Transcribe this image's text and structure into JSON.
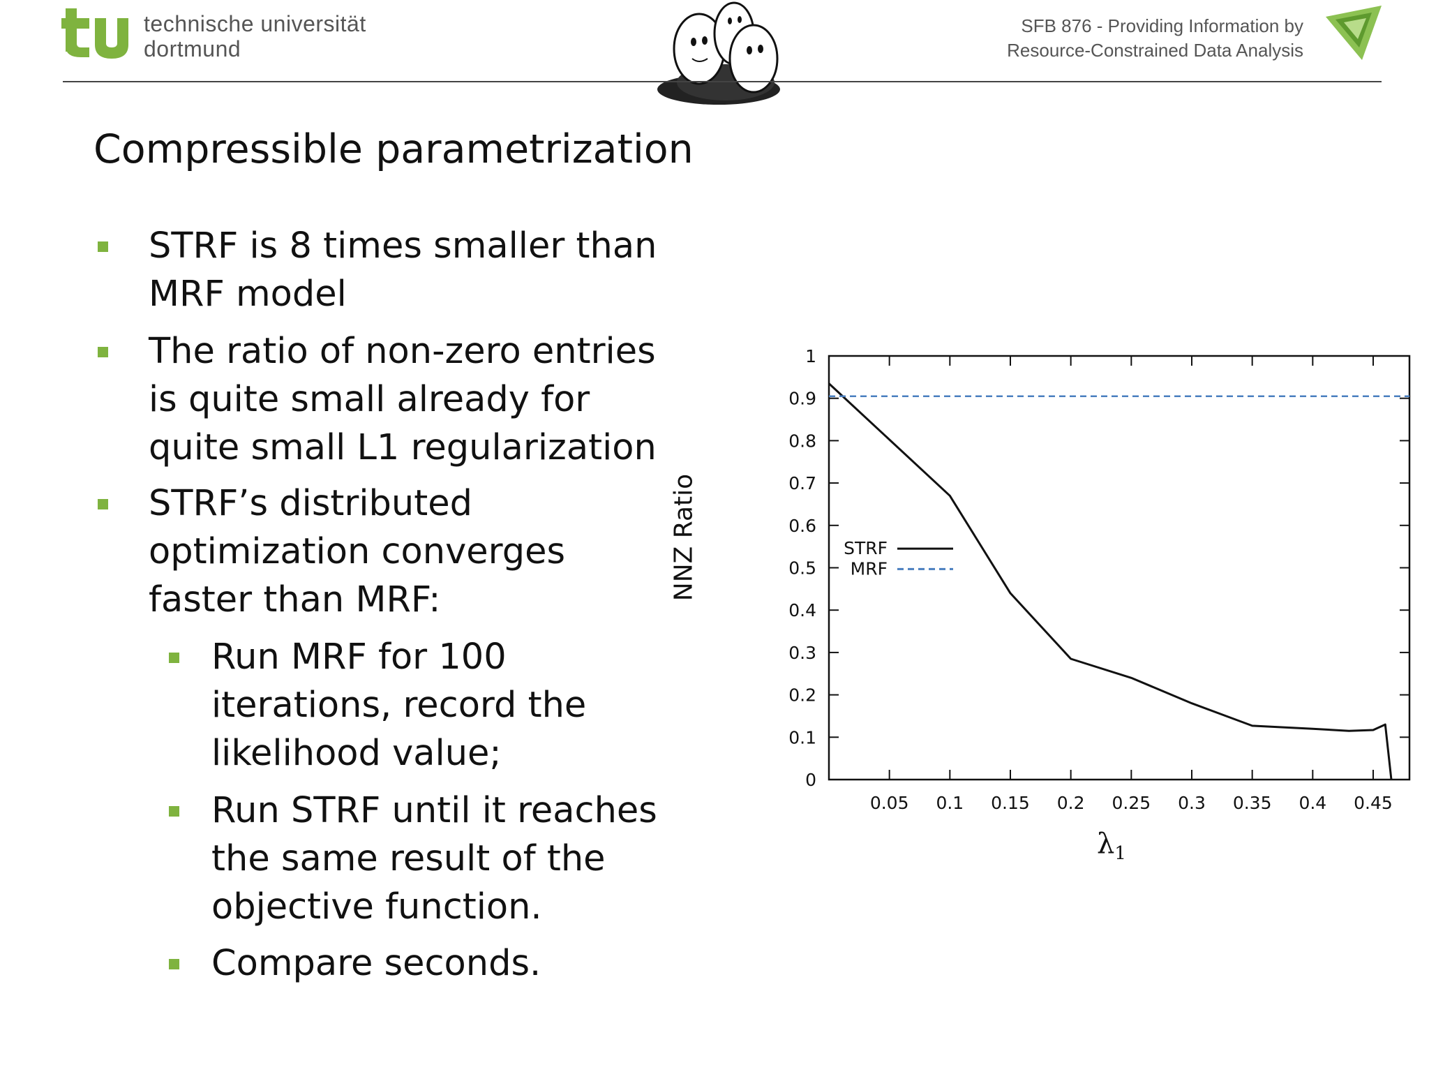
{
  "header": {
    "university_line1": "technische universität",
    "university_line2": "dortmund",
    "sfb_line1": "SFB 876  -  Providing Information by",
    "sfb_line2": "Resource-Constrained Data Analysis",
    "accent_color": "#7fb33f"
  },
  "slide": {
    "title": "Compressible parametrization",
    "bullets": [
      {
        "lines": [
          "STRF is 8 times smaller than",
          "MRF model"
        ]
      },
      {
        "lines": [
          "The ratio of non-zero entries",
          "is quite small already for",
          "quite small L1 regularization"
        ]
      },
      {
        "lines": [
          "STRF’s distributed",
          "optimization converges",
          "faster than MRF:"
        ]
      }
    ],
    "sub_bullets": [
      {
        "lines": [
          "Run MRF for 100",
          "iterations, record the",
          "likelihood value;"
        ]
      },
      {
        "lines": [
          "Run STRF until it reaches",
          "the same result of the",
          "objective function."
        ]
      },
      {
        "lines": [
          "Compare seconds."
        ]
      }
    ]
  },
  "chart_data": {
    "type": "line",
    "title": "",
    "xlabel": "λ",
    "xlabel_sub": "1",
    "ylabel": "NNZ Ratio",
    "xlim": [
      0,
      0.48
    ],
    "ylim": [
      0,
      1
    ],
    "xticks": [
      "0.05",
      "0.1",
      "0.15",
      "0.2",
      "0.25",
      "0.3",
      "0.35",
      "0.4",
      "0.45"
    ],
    "yticks": [
      "0",
      "0.1",
      "0.2",
      "0.3",
      "0.4",
      "0.5",
      "0.6",
      "0.7",
      "0.8",
      "0.9",
      "1"
    ],
    "legend_position": "left-middle",
    "grid": false,
    "series": [
      {
        "name": "STRF",
        "color": "#111111",
        "style": "solid",
        "x": [
          0,
          0.1,
          0.15,
          0.2,
          0.25,
          0.3,
          0.35,
          0.4,
          0.43,
          0.45,
          0.46,
          0.465
        ],
        "y": [
          0.935,
          0.67,
          0.44,
          0.285,
          0.24,
          0.18,
          0.127,
          0.12,
          0.115,
          0.117,
          0.13,
          0
        ]
      },
      {
        "name": "MRF",
        "color": "#4a7fbf",
        "style": "dashed",
        "x": [
          0,
          0.48
        ],
        "y": [
          0.905,
          0.905
        ]
      }
    ]
  }
}
